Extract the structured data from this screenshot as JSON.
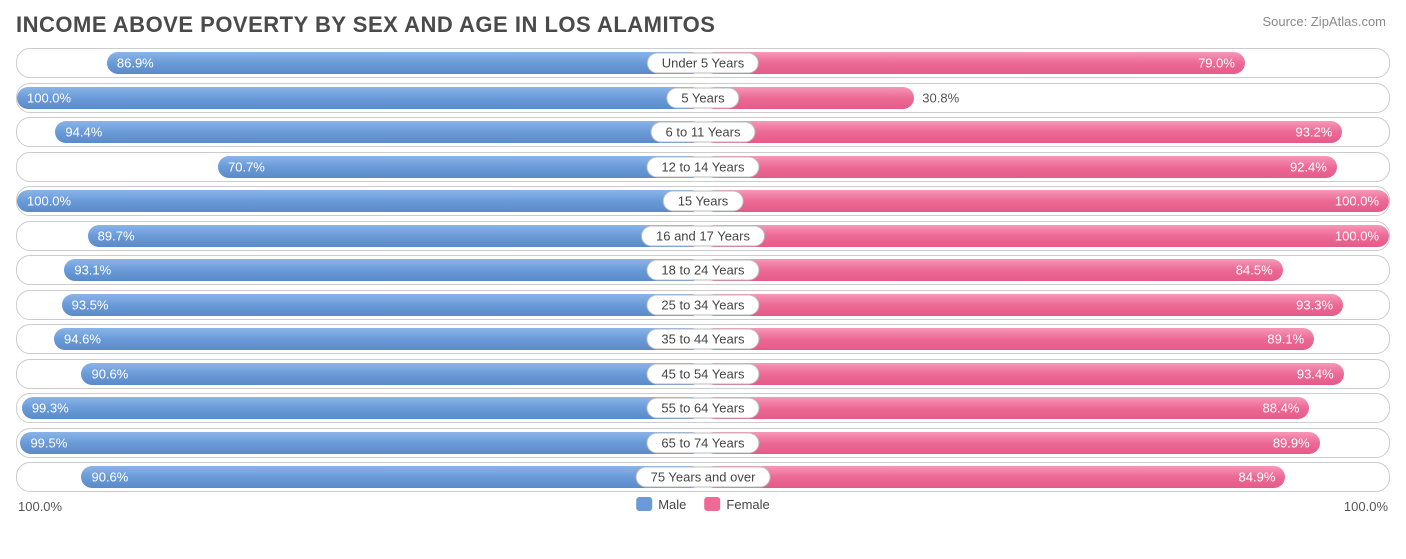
{
  "title": "INCOME ABOVE POVERTY BY SEX AND AGE IN LOS ALAMITOS",
  "source": "Source: ZipAtlas.com",
  "colors": {
    "male": "#6a9bd8",
    "female": "#ec6a95",
    "border": "#cccccc",
    "text": "#4a4a4a",
    "muted": "#8a8a8a",
    "bg": "#ffffff"
  },
  "chart": {
    "type": "diverging-bar",
    "axis_max": 100.0,
    "axis_left_label": "100.0%",
    "axis_right_label": "100.0%",
    "legend": [
      {
        "label": "Male",
        "color": "#6a9bd8"
      },
      {
        "label": "Female",
        "color": "#ec6a95"
      }
    ],
    "rows": [
      {
        "category": "Under 5 Years",
        "male": 86.9,
        "female": 79.0
      },
      {
        "category": "5 Years",
        "male": 100.0,
        "female": 30.8
      },
      {
        "category": "6 to 11 Years",
        "male": 94.4,
        "female": 93.2
      },
      {
        "category": "12 to 14 Years",
        "male": 70.7,
        "female": 92.4
      },
      {
        "category": "15 Years",
        "male": 100.0,
        "female": 100.0
      },
      {
        "category": "16 and 17 Years",
        "male": 89.7,
        "female": 100.0
      },
      {
        "category": "18 to 24 Years",
        "male": 93.1,
        "female": 84.5
      },
      {
        "category": "25 to 34 Years",
        "male": 93.5,
        "female": 93.3
      },
      {
        "category": "35 to 44 Years",
        "male": 94.6,
        "female": 89.1
      },
      {
        "category": "45 to 54 Years",
        "male": 90.6,
        "female": 93.4
      },
      {
        "category": "55 to 64 Years",
        "male": 99.3,
        "female": 88.4
      },
      {
        "category": "65 to 74 Years",
        "male": 99.5,
        "female": 89.9
      },
      {
        "category": "75 Years and over",
        "male": 90.6,
        "female": 84.9
      }
    ]
  }
}
